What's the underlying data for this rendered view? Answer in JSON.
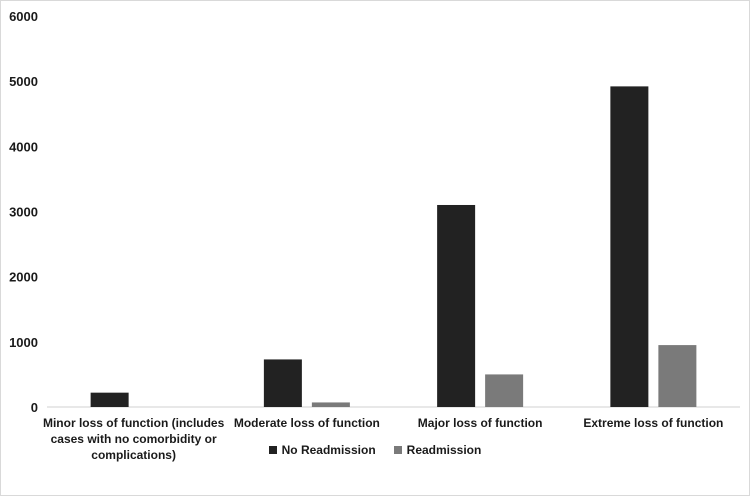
{
  "chart_data": {
    "type": "bar",
    "categories": [
      [
        "Minor loss of function (includes",
        "cases with no comorbidity or",
        "complications)"
      ],
      [
        "Moderate loss of function"
      ],
      [
        "Major loss of function"
      ],
      [
        "Extreme loss of function"
      ]
    ],
    "series": [
      {
        "name": "No Readmission",
        "color": "#222222",
        "values": [
          220,
          730,
          3100,
          4920
        ]
      },
      {
        "name": "Readmission",
        "color": "#7a7a7a",
        "values": [
          0,
          70,
          500,
          950
        ]
      }
    ],
    "ylim": [
      0,
      6000
    ],
    "yticks": [
      0,
      1000,
      2000,
      3000,
      4000,
      5000,
      6000
    ],
    "grid": false,
    "legend": "bottom"
  }
}
